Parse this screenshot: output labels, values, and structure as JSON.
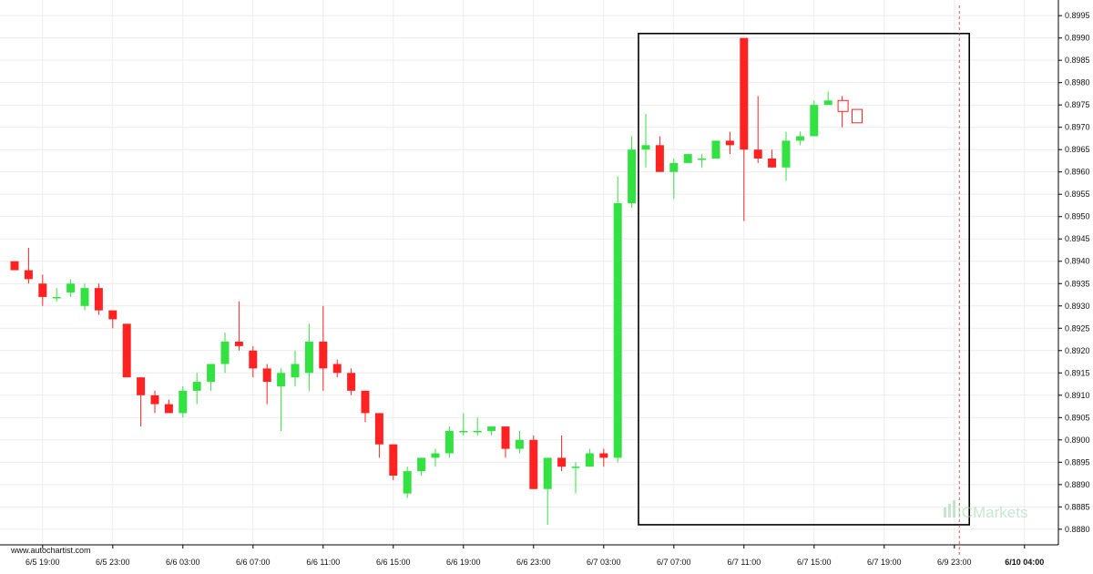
{
  "chart_data": {
    "type": "candlestick",
    "y_ticks": [
      "0.8880",
      "0.8885",
      "0.8890",
      "0.8895",
      "0.8900",
      "0.8905",
      "0.8910",
      "0.8915",
      "0.8920",
      "0.8925",
      "0.8930",
      "0.8935",
      "0.8940",
      "0.8945",
      "0.8950",
      "0.8955",
      "0.8960",
      "0.8965",
      "0.8970",
      "0.8975",
      "0.8980",
      "0.8985",
      "0.8990",
      "0.8995"
    ],
    "ylim": [
      0.88765,
      0.89985
    ],
    "x_labels": [
      {
        "label": "6/5 19:00",
        "index": 2
      },
      {
        "label": "6/5 23:00",
        "index": 7
      },
      {
        "label": "6/6 03:00",
        "index": 12
      },
      {
        "label": "6/6 07:00",
        "index": 17
      },
      {
        "label": "6/6 11:00",
        "index": 22
      },
      {
        "label": "6/6 15:00",
        "index": 27
      },
      {
        "label": "6/6 19:00",
        "index": 32
      },
      {
        "label": "6/6 23:00",
        "index": 37
      },
      {
        "label": "6/7 03:00",
        "index": 42
      },
      {
        "label": "6/7 07:00",
        "index": 47
      },
      {
        "label": "6/7 11:00",
        "index": 52
      },
      {
        "label": "6/7 15:00",
        "index": 57
      },
      {
        "label": "6/7 19:00",
        "index": 62
      },
      {
        "label": "6/9 23:00",
        "index": 67
      },
      {
        "label": "6/10 04:00",
        "index": 72,
        "bold": true
      }
    ],
    "candles": [
      {
        "o": 0.894,
        "h": 0.894,
        "l": 0.8938,
        "c": 0.8938
      },
      {
        "o": 0.8938,
        "h": 0.8943,
        "l": 0.8935,
        "c": 0.8936
      },
      {
        "o": 0.8935,
        "h": 0.8937,
        "l": 0.893,
        "c": 0.8932
      },
      {
        "o": 0.8932,
        "h": 0.8934,
        "l": 0.8931,
        "c": 0.8932
      },
      {
        "o": 0.8933,
        "h": 0.8936,
        "l": 0.8932,
        "c": 0.8935
      },
      {
        "o": 0.893,
        "h": 0.8935,
        "l": 0.8929,
        "c": 0.8934
      },
      {
        "o": 0.8934,
        "h": 0.8935,
        "l": 0.8928,
        "c": 0.8929
      },
      {
        "o": 0.8929,
        "h": 0.8929,
        "l": 0.8925,
        "c": 0.8927
      },
      {
        "o": 0.8926,
        "h": 0.8926,
        "l": 0.8914,
        "c": 0.8914
      },
      {
        "o": 0.8914,
        "h": 0.8914,
        "l": 0.8903,
        "c": 0.891
      },
      {
        "o": 0.891,
        "h": 0.8911,
        "l": 0.8906,
        "c": 0.8908
      },
      {
        "o": 0.8908,
        "h": 0.8909,
        "l": 0.8906,
        "c": 0.8906
      },
      {
        "o": 0.8906,
        "h": 0.8912,
        "l": 0.8905,
        "c": 0.8911
      },
      {
        "o": 0.8911,
        "h": 0.8915,
        "l": 0.8908,
        "c": 0.8913
      },
      {
        "o": 0.8913,
        "h": 0.8917,
        "l": 0.8911,
        "c": 0.8917
      },
      {
        "o": 0.8917,
        "h": 0.8924,
        "l": 0.8915,
        "c": 0.8922
      },
      {
        "o": 0.8922,
        "h": 0.8931,
        "l": 0.892,
        "c": 0.8921
      },
      {
        "o": 0.892,
        "h": 0.8921,
        "l": 0.8914,
        "c": 0.8916
      },
      {
        "o": 0.8916,
        "h": 0.8917,
        "l": 0.8908,
        "c": 0.8913
      },
      {
        "o": 0.8912,
        "h": 0.8916,
        "l": 0.8902,
        "c": 0.8915
      },
      {
        "o": 0.8914,
        "h": 0.892,
        "l": 0.8912,
        "c": 0.8917
      },
      {
        "o": 0.8915,
        "h": 0.8926,
        "l": 0.8911,
        "c": 0.8922
      },
      {
        "o": 0.8922,
        "h": 0.893,
        "l": 0.8911,
        "c": 0.8916
      },
      {
        "o": 0.8917,
        "h": 0.8918,
        "l": 0.8914,
        "c": 0.8915
      },
      {
        "o": 0.8915,
        "h": 0.8916,
        "l": 0.891,
        "c": 0.8911
      },
      {
        "o": 0.8911,
        "h": 0.8911,
        "l": 0.8904,
        "c": 0.8906
      },
      {
        "o": 0.8906,
        "h": 0.8906,
        "l": 0.8896,
        "c": 0.8899
      },
      {
        "o": 0.8899,
        "h": 0.8899,
        "l": 0.8891,
        "c": 0.8892
      },
      {
        "o": 0.8888,
        "h": 0.8894,
        "l": 0.8887,
        "c": 0.8893
      },
      {
        "o": 0.8893,
        "h": 0.8896,
        "l": 0.8892,
        "c": 0.8896
      },
      {
        "o": 0.8896,
        "h": 0.8898,
        "l": 0.8894,
        "c": 0.8897
      },
      {
        "o": 0.8897,
        "h": 0.8903,
        "l": 0.8896,
        "c": 0.8902
      },
      {
        "o": 0.8902,
        "h": 0.8906,
        "l": 0.8901,
        "c": 0.8902
      },
      {
        "o": 0.8902,
        "h": 0.8905,
        "l": 0.8901,
        "c": 0.8902
      },
      {
        "o": 0.8902,
        "h": 0.8903,
        "l": 0.8901,
        "c": 0.8903
      },
      {
        "o": 0.8903,
        "h": 0.8903,
        "l": 0.8896,
        "c": 0.8898
      },
      {
        "o": 0.8898,
        "h": 0.8902,
        "l": 0.8897,
        "c": 0.89
      },
      {
        "o": 0.89,
        "h": 0.8901,
        "l": 0.8889,
        "c": 0.8889
      },
      {
        "o": 0.8889,
        "h": 0.8896,
        "l": 0.8881,
        "c": 0.8896
      },
      {
        "o": 0.8896,
        "h": 0.8901,
        "l": 0.8893,
        "c": 0.8894
      },
      {
        "o": 0.8894,
        "h": 0.8895,
        "l": 0.8888,
        "c": 0.8894
      },
      {
        "o": 0.8894,
        "h": 0.8898,
        "l": 0.8894,
        "c": 0.8897
      },
      {
        "o": 0.8897,
        "h": 0.8898,
        "l": 0.8894,
        "c": 0.8896
      },
      {
        "o": 0.8896,
        "h": 0.8959,
        "l": 0.8895,
        "c": 0.8953
      },
      {
        "o": 0.8953,
        "h": 0.8968,
        "l": 0.8952,
        "c": 0.8965
      },
      {
        "o": 0.8965,
        "h": 0.8973,
        "l": 0.8961,
        "c": 0.8966
      },
      {
        "o": 0.8966,
        "h": 0.8968,
        "l": 0.896,
        "c": 0.896
      },
      {
        "o": 0.896,
        "h": 0.8963,
        "l": 0.8954,
        "c": 0.8962
      },
      {
        "o": 0.8962,
        "h": 0.8964,
        "l": 0.8962,
        "c": 0.8964
      },
      {
        "o": 0.8963,
        "h": 0.8964,
        "l": 0.8961,
        "c": 0.8963
      },
      {
        "o": 0.8963,
        "h": 0.8967,
        "l": 0.8963,
        "c": 0.8967
      },
      {
        "o": 0.8967,
        "h": 0.8969,
        "l": 0.8964,
        "c": 0.8966
      },
      {
        "o": 0.899,
        "h": 0.899,
        "l": 0.8949,
        "c": 0.8965
      },
      {
        "o": 0.8965,
        "h": 0.8977,
        "l": 0.8962,
        "c": 0.8963
      },
      {
        "o": 0.8963,
        "h": 0.8965,
        "l": 0.8961,
        "c": 0.8961
      },
      {
        "o": 0.8961,
        "h": 0.8969,
        "l": 0.8958,
        "c": 0.8967
      },
      {
        "o": 0.8967,
        "h": 0.8969,
        "l": 0.8966,
        "c": 0.8968
      },
      {
        "o": 0.8968,
        "h": 0.8976,
        "l": 0.8968,
        "c": 0.8975
      },
      {
        "o": 0.8975,
        "h": 0.8978,
        "l": 0.8975,
        "c": 0.8976
      },
      {
        "o": 0.8976,
        "h": 0.8977,
        "l": 0.897,
        "c": 0.8975
      },
      {
        "o": 0.8974,
        "h": 0.8974,
        "l": 0.8971,
        "c": 0.8971
      }
    ],
    "candle_x_start": 16,
    "candle_x_step": 15.4,
    "highlight": {
      "from_index": 45,
      "to_index": 68,
      "low": 0.8881,
      "high": 0.8991
    },
    "future_candles_hollow": 2,
    "last_bar_marker_index": 68,
    "colors": {
      "up": "#33e143",
      "down": "#ff2222",
      "box": "#000000",
      "marker": "#c03030"
    }
  },
  "source_text": "www.autochartist.com",
  "watermark": {
    "text": "ICMarkets"
  }
}
